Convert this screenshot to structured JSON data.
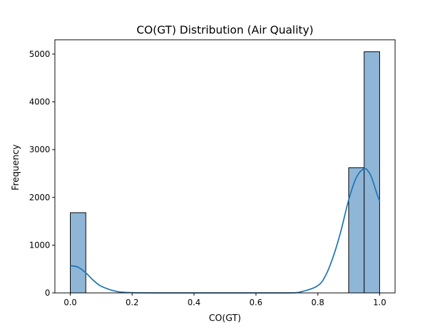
{
  "chart_data": {
    "type": "bar",
    "title": "CO(GT) Distribution (Air Quality)",
    "xlabel": "CO(GT)",
    "ylabel": "Frequency",
    "xlim": [
      -0.05,
      1.05
    ],
    "ylim": [
      0,
      5300
    ],
    "xticks": [
      "0.0",
      "0.2",
      "0.4",
      "0.6",
      "0.8",
      "1.0"
    ],
    "yticks": [
      "0",
      "1000",
      "2000",
      "3000",
      "4000",
      "5000"
    ],
    "grid": false,
    "histogram": {
      "bin_width": 0.05,
      "bins": [
        {
          "x0": 0.0,
          "x1": 0.05,
          "count": 1680
        },
        {
          "x0": 0.9,
          "x1": 0.95,
          "count": 2620
        },
        {
          "x0": 0.95,
          "x1": 1.0,
          "count": 5050
        }
      ]
    },
    "kde": {
      "x": [
        0.0,
        0.025,
        0.05,
        0.075,
        0.1,
        0.15,
        0.2,
        0.3,
        0.5,
        0.7,
        0.75,
        0.8,
        0.825,
        0.85,
        0.875,
        0.9,
        0.925,
        0.95,
        0.965,
        0.975,
        0.99,
        1.0
      ],
      "y": [
        570,
        540,
        420,
        260,
        140,
        30,
        5,
        0,
        0,
        0,
        30,
        150,
        360,
        760,
        1300,
        1950,
        2420,
        2600,
        2530,
        2400,
        2100,
        1920
      ]
    },
    "colors": {
      "bar_fill": "#8fb6d7",
      "bar_edge": "#000000",
      "kde_line": "#1f77b4"
    }
  }
}
